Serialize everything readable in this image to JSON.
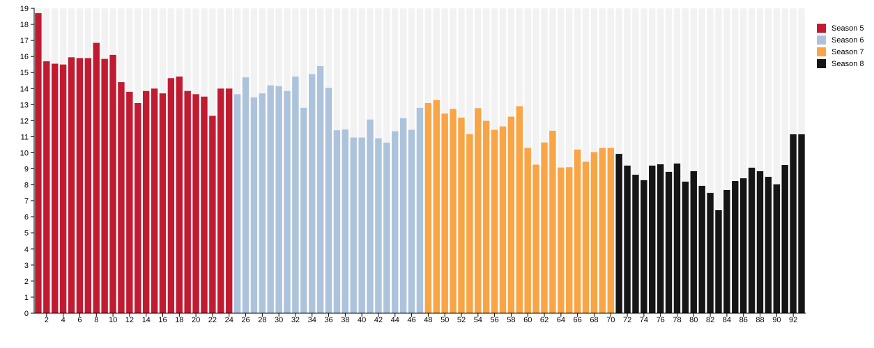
{
  "chart_data": {
    "type": "bar",
    "title": "",
    "xlabel": "",
    "ylabel": "",
    "ylim": [
      0,
      19
    ],
    "yticks": [
      0,
      1,
      2,
      3,
      4,
      5,
      6,
      7,
      8,
      9,
      10,
      11,
      12,
      13,
      14,
      15,
      16,
      17,
      18,
      19
    ],
    "xticks": [
      2,
      4,
      6,
      8,
      10,
      12,
      14,
      16,
      18,
      20,
      22,
      24,
      26,
      28,
      30,
      32,
      34,
      36,
      38,
      40,
      42,
      44,
      46,
      48,
      50,
      52,
      54,
      56,
      58,
      60,
      62,
      64,
      66,
      68,
      70,
      72,
      74,
      76,
      78,
      80,
      82,
      84,
      86,
      88,
      90,
      92
    ],
    "grid": false,
    "legend_position": "right",
    "series": [
      {
        "name": "Season 5",
        "color": "#c11b32",
        "x_start": 1,
        "values": [
          18.7,
          15.7,
          15.55,
          15.5,
          15.95,
          15.9,
          15.9,
          16.85,
          15.85,
          16.1,
          14.4,
          13.8,
          13.1,
          13.85,
          14.0,
          13.7,
          14.65,
          14.75,
          13.85,
          13.65,
          13.5,
          12.3,
          14.0,
          14.0
        ]
      },
      {
        "name": "Season 6",
        "color": "#adc3dc",
        "x_start": 25,
        "values": [
          13.65,
          14.7,
          13.45,
          13.7,
          14.2,
          14.15,
          13.85,
          14.75,
          12.8,
          14.9,
          15.4,
          14.05,
          11.4,
          11.45,
          10.95,
          10.95,
          12.07,
          10.9,
          10.63,
          11.34,
          12.15,
          11.43,
          12.8
        ]
      },
      {
        "name": "Season 7",
        "color": "#f9a445",
        "x_start": 48,
        "values": [
          13.1,
          13.28,
          12.44,
          12.73,
          12.19,
          11.16,
          12.78,
          11.99,
          11.43,
          11.64,
          12.25,
          12.9,
          10.3,
          9.26,
          10.64,
          11.37,
          9.08,
          9.1,
          10.2,
          9.44,
          10.04,
          10.3,
          10.3
        ]
      },
      {
        "name": "Season 8",
        "color": "#151515",
        "x_start": 71,
        "values": [
          9.93,
          9.2,
          8.63,
          8.29,
          9.2,
          9.28,
          8.81,
          9.33,
          8.2,
          8.85,
          7.94,
          7.5,
          6.42,
          7.68,
          8.24,
          8.41,
          9.07,
          8.85,
          8.5,
          8.03,
          9.24,
          11.15,
          11.15
        ]
      }
    ]
  }
}
